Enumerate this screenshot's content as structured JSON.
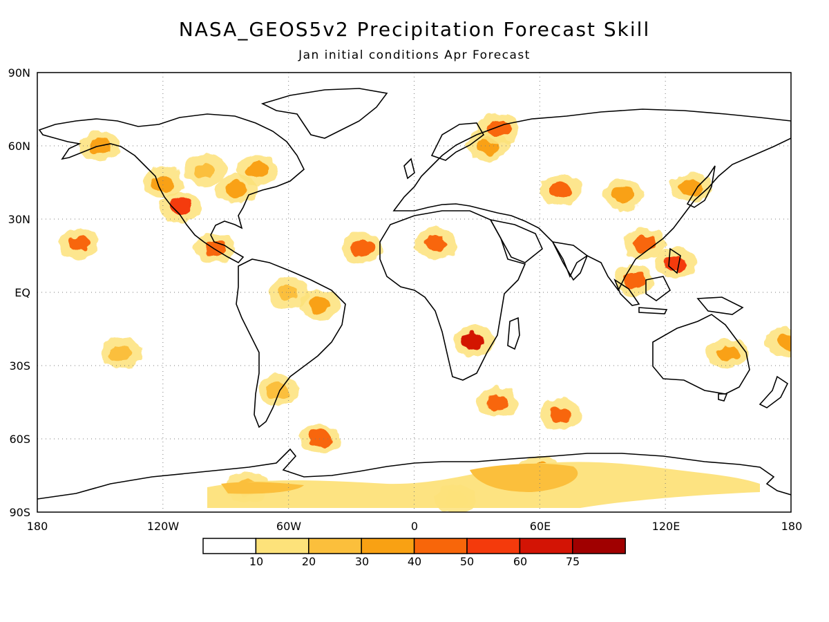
{
  "title": "NASA_GEOS5v2 Precipitation Forecast Skill",
  "subtitle": "Jan initial conditions  Apr Forecast",
  "map": {
    "projection": "equirectangular",
    "lon_range": [
      -180,
      180
    ],
    "lat_range": [
      -90,
      90
    ],
    "grid": true,
    "lat_ticks": [
      {
        "value": 90,
        "label": "90N"
      },
      {
        "value": 60,
        "label": "60N"
      },
      {
        "value": 30,
        "label": "30N"
      },
      {
        "value": 0,
        "label": "EQ"
      },
      {
        "value": -30,
        "label": "30S"
      },
      {
        "value": -60,
        "label": "60S"
      },
      {
        "value": -90,
        "label": "90S"
      }
    ],
    "lon_ticks": [
      {
        "value": -180,
        "label": "180"
      },
      {
        "value": -120,
        "label": "120W"
      },
      {
        "value": -60,
        "label": "60W"
      },
      {
        "value": 0,
        "label": "0"
      },
      {
        "value": 60,
        "label": "60E"
      },
      {
        "value": 120,
        "label": "120E"
      },
      {
        "value": 180,
        "label": "180"
      }
    ]
  },
  "legend": {
    "levels": [
      "10",
      "20",
      "30",
      "40",
      "50",
      "60",
      "75"
    ],
    "colors": [
      "#ffffff",
      "#fde27a",
      "#fbbf3c",
      "#f9a113",
      "#f8660a",
      "#f43a0c",
      "#d31405",
      "#a00000"
    ]
  },
  "chart_data": {
    "type": "heatmap",
    "title": "NASA_GEOS5v2 Precipitation Forecast Skill",
    "subtitle": "Jan initial conditions  Apr Forecast",
    "x_range": [
      -180,
      180
    ],
    "y_range": [
      -90,
      90
    ],
    "color_levels": [
      10,
      20,
      30,
      40,
      50,
      60,
      75
    ],
    "regions": [
      {
        "lon": -112,
        "lat": 35,
        "value": 55
      },
      {
        "lon": -120,
        "lat": 45,
        "value": 35
      },
      {
        "lon": -100,
        "lat": 50,
        "value": 25
      },
      {
        "lon": -85,
        "lat": 42,
        "value": 30
      },
      {
        "lon": -75,
        "lat": 50,
        "value": 30
      },
      {
        "lon": -150,
        "lat": 60,
        "value": 35
      },
      {
        "lon": -160,
        "lat": 20,
        "value": 45
      },
      {
        "lon": -95,
        "lat": 18,
        "value": 40
      },
      {
        "lon": -60,
        "lat": 0,
        "value": 25
      },
      {
        "lon": -45,
        "lat": -5,
        "value": 30
      },
      {
        "lon": -65,
        "lat": -40,
        "value": 25
      },
      {
        "lon": 28,
        "lat": -20,
        "value": 60
      },
      {
        "lon": 10,
        "lat": 20,
        "value": 45
      },
      {
        "lon": -25,
        "lat": 18,
        "value": 45
      },
      {
        "lon": 35,
        "lat": 60,
        "value": 35
      },
      {
        "lon": 40,
        "lat": 67,
        "value": 40
      },
      {
        "lon": 70,
        "lat": 42,
        "value": 40
      },
      {
        "lon": 100,
        "lat": 40,
        "value": 30
      },
      {
        "lon": 110,
        "lat": 20,
        "value": 45
      },
      {
        "lon": 125,
        "lat": 12,
        "value": 50
      },
      {
        "lon": 105,
        "lat": 5,
        "value": 40
      },
      {
        "lon": 132,
        "lat": 43,
        "value": 35
      },
      {
        "lon": 150,
        "lat": -25,
        "value": 30
      },
      {
        "lon": 178,
        "lat": -20,
        "value": 35
      },
      {
        "lon": -140,
        "lat": -25,
        "value": 25
      },
      {
        "lon": 40,
        "lat": -45,
        "value": 40
      },
      {
        "lon": 70,
        "lat": -50,
        "value": 45
      },
      {
        "lon": -45,
        "lat": -60,
        "value": 45
      },
      {
        "lon": 60,
        "lat": -73,
        "value": 35
      },
      {
        "lon": -80,
        "lat": -80,
        "value": 20
      },
      {
        "lon": 20,
        "lat": -85,
        "value": 15
      }
    ]
  }
}
